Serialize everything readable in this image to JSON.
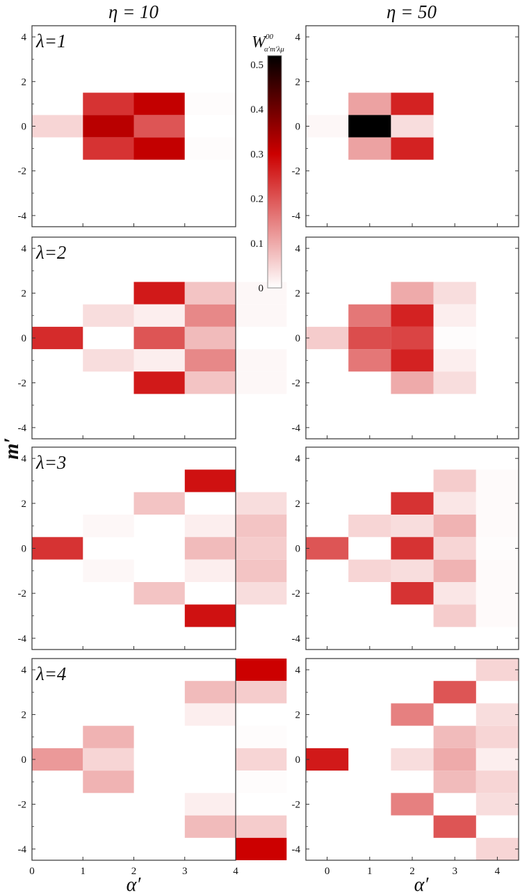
{
  "column_titles": [
    "η = 10",
    "η = 50"
  ],
  "y_axis_label": "m′",
  "x_axis_labels": [
    "α′",
    "α′"
  ],
  "colorbar": {
    "label": "W",
    "label_superscript": "00",
    "label_subscript": "α′m′λμ",
    "ticks": [
      "0",
      "0.1",
      "0.2",
      "0.3",
      "0.4",
      "0.5"
    ],
    "tick_values": [
      0,
      0.1,
      0.2,
      0.3,
      0.4,
      0.5
    ],
    "range": [
      0,
      0.52
    ],
    "colors": [
      "#ffffff",
      "#cc0000",
      "#000000"
    ]
  },
  "panel_labels": [
    "λ=1",
    "λ=2",
    "λ=3",
    "λ=4"
  ],
  "y_ticks": [
    "4",
    "2",
    "0",
    "-2",
    "-4"
  ],
  "x_ticks_left": [
    "0",
    "1",
    "2",
    "3",
    "4"
  ],
  "x_ticks_right": [
    "0",
    "1",
    "2",
    "3",
    "4"
  ],
  "chart_data": [
    {
      "type": "heatmap",
      "eta": 10,
      "lambda": 1,
      "xlim": [
        0,
        4
      ],
      "ylim": [
        -4.5,
        4.5
      ],
      "cells": [
        [
          0,
          0,
          0.05
        ],
        [
          1,
          1,
          0.24
        ],
        [
          1,
          0,
          0.32
        ],
        [
          1,
          -1,
          0.24
        ],
        [
          2,
          1,
          0.31
        ],
        [
          2,
          0,
          0.2
        ],
        [
          2,
          -1,
          0.31
        ],
        [
          3,
          1,
          0.004
        ],
        [
          3,
          -1,
          0.004
        ]
      ]
    },
    {
      "type": "heatmap",
      "eta": 50,
      "lambda": 1,
      "xlim": [
        -0.5,
        4.5
      ],
      "ylim": [
        -4.5,
        4.5
      ],
      "cells": [
        [
          0,
          0,
          0.01
        ],
        [
          1,
          1,
          0.11
        ],
        [
          1,
          0,
          0.52
        ],
        [
          1,
          -1,
          0.11
        ],
        [
          2,
          1,
          0.26
        ],
        [
          2,
          0,
          0.04
        ],
        [
          2,
          -1,
          0.26
        ]
      ]
    },
    {
      "type": "heatmap",
      "eta": 10,
      "lambda": 2,
      "xlim": [
        0,
        4
      ],
      "ylim": [
        -4.5,
        4.5
      ],
      "cells": [
        [
          0,
          0,
          0.25
        ],
        [
          1,
          1,
          0.04
        ],
        [
          1,
          -1,
          0.04
        ],
        [
          2,
          2,
          0.27
        ],
        [
          2,
          1,
          0.02
        ],
        [
          2,
          0,
          0.2
        ],
        [
          2,
          -1,
          0.02
        ],
        [
          2,
          -2,
          0.27
        ],
        [
          3,
          2,
          0.07
        ],
        [
          3,
          1,
          0.14
        ],
        [
          3,
          0,
          0.08
        ],
        [
          3,
          -1,
          0.14
        ],
        [
          3,
          -2,
          0.07
        ],
        [
          4,
          2,
          0.01
        ],
        [
          4,
          1,
          0.01
        ],
        [
          4,
          -1,
          0.01
        ],
        [
          4,
          -2,
          0.01
        ]
      ]
    },
    {
      "type": "heatmap",
      "eta": 50,
      "lambda": 2,
      "xlim": [
        -0.5,
        4.5
      ],
      "ylim": [
        -4.5,
        4.5
      ],
      "cells": [
        [
          0,
          0,
          0.06
        ],
        [
          1,
          1,
          0.16
        ],
        [
          1,
          0,
          0.21
        ],
        [
          1,
          -1,
          0.16
        ],
        [
          2,
          2,
          0.1
        ],
        [
          2,
          1,
          0.26
        ],
        [
          2,
          0,
          0.22
        ],
        [
          2,
          -1,
          0.26
        ],
        [
          2,
          -2,
          0.1
        ],
        [
          3,
          2,
          0.04
        ],
        [
          3,
          1,
          0.02
        ],
        [
          3,
          0,
          0.003
        ],
        [
          3,
          -1,
          0.02
        ],
        [
          3,
          -2,
          0.04
        ]
      ]
    },
    {
      "type": "heatmap",
      "eta": 10,
      "lambda": 3,
      "xlim": [
        0,
        4
      ],
      "ylim": [
        -4.5,
        4.5
      ],
      "cells": [
        [
          0,
          0,
          0.24
        ],
        [
          1,
          1,
          0.01
        ],
        [
          1,
          -1,
          0.01
        ],
        [
          2,
          2,
          0.07
        ],
        [
          2,
          -2,
          0.07
        ],
        [
          3,
          3,
          0.28
        ],
        [
          3,
          1,
          0.02
        ],
        [
          3,
          0,
          0.08
        ],
        [
          3,
          -1,
          0.02
        ],
        [
          3,
          -3,
          0.28
        ],
        [
          4,
          2,
          0.04
        ],
        [
          4,
          1,
          0.07
        ],
        [
          4,
          0,
          0.06
        ],
        [
          4,
          -1,
          0.07
        ],
        [
          4,
          -2,
          0.04
        ]
      ]
    },
    {
      "type": "heatmap",
      "eta": 50,
      "lambda": 3,
      "xlim": [
        -0.5,
        4.5
      ],
      "ylim": [
        -4.5,
        4.5
      ],
      "cells": [
        [
          0,
          0,
          0.2
        ],
        [
          1,
          1,
          0.05
        ],
        [
          1,
          -1,
          0.05
        ],
        [
          2,
          2,
          0.24
        ],
        [
          2,
          1,
          0.04
        ],
        [
          2,
          0,
          0.24
        ],
        [
          2,
          -1,
          0.04
        ],
        [
          2,
          -2,
          0.24
        ],
        [
          3,
          3,
          0.06
        ],
        [
          3,
          2,
          0.03
        ],
        [
          3,
          1,
          0.09
        ],
        [
          3,
          0,
          0.05
        ],
        [
          3,
          -1,
          0.09
        ],
        [
          3,
          -2,
          0.03
        ],
        [
          3,
          -3,
          0.06
        ],
        [
          4,
          3,
          0.006
        ],
        [
          4,
          2,
          0.006
        ],
        [
          4,
          1,
          0.006
        ],
        [
          4,
          0,
          0.003
        ],
        [
          4,
          -1,
          0.006
        ],
        [
          4,
          -2,
          0.006
        ],
        [
          4,
          -3,
          0.006
        ]
      ]
    },
    {
      "type": "heatmap",
      "eta": 10,
      "lambda": 4,
      "xlim": [
        0,
        4
      ],
      "ylim": [
        -4.5,
        4.5
      ],
      "cells": [
        [
          0,
          0,
          0.12
        ],
        [
          1,
          1,
          0.09
        ],
        [
          1,
          0,
          0.05
        ],
        [
          1,
          -1,
          0.09
        ],
        [
          3,
          3,
          0.08
        ],
        [
          3,
          2,
          0.02
        ],
        [
          3,
          -2,
          0.02
        ],
        [
          3,
          -3,
          0.08
        ],
        [
          4,
          4,
          0.3
        ],
        [
          4,
          3,
          0.06
        ],
        [
          4,
          1,
          0.004
        ],
        [
          4,
          0,
          0.05
        ],
        [
          4,
          -1,
          0.004
        ],
        [
          4,
          -3,
          0.06
        ],
        [
          4,
          -4,
          0.3
        ]
      ]
    },
    {
      "type": "heatmap",
      "eta": 50,
      "lambda": 4,
      "xlim": [
        -0.5,
        4.5
      ],
      "ylim": [
        -4.5,
        4.5
      ],
      "cells": [
        [
          0,
          0,
          0.27
        ],
        [
          2,
          2,
          0.15
        ],
        [
          2,
          0,
          0.04
        ],
        [
          2,
          -2,
          0.15
        ],
        [
          3,
          3,
          0.2
        ],
        [
          3,
          1,
          0.08
        ],
        [
          3,
          0,
          0.1
        ],
        [
          3,
          -1,
          0.08
        ],
        [
          3,
          -3,
          0.2
        ],
        [
          4,
          4,
          0.05
        ],
        [
          4,
          2,
          0.04
        ],
        [
          4,
          1,
          0.05
        ],
        [
          4,
          0,
          0.02
        ],
        [
          4,
          -1,
          0.05
        ],
        [
          4,
          -2,
          0.04
        ],
        [
          4,
          -4,
          0.05
        ]
      ]
    }
  ]
}
